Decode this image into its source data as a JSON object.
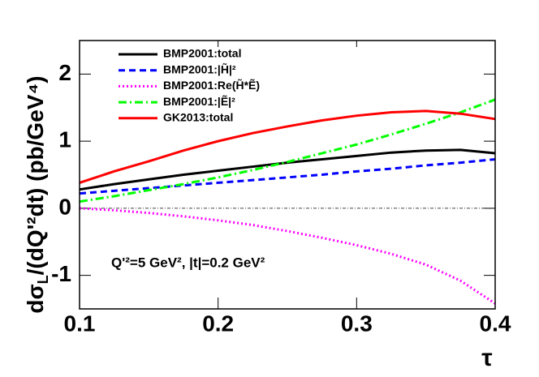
{
  "chart_data": {
    "type": "line",
    "y_label": [
      "dσ",
      "L",
      "/(dQ'²dt) (pb/GeV⁴)"
    ],
    "x_label": "τ",
    "annotation": "Q'²=5 GeV², |t|=0.2 GeV²",
    "x": [
      0.1,
      0.125,
      0.15,
      0.175,
      0.2,
      0.225,
      0.25,
      0.275,
      0.3,
      0.325,
      0.35,
      0.375,
      0.4
    ],
    "series": [
      {
        "name": "BMP2001:total",
        "color": "#000000",
        "dash": "solid",
        "values": [
          0.28,
          0.36,
          0.43,
          0.5,
          0.56,
          0.62,
          0.68,
          0.73,
          0.78,
          0.83,
          0.86,
          0.87,
          0.82
        ]
      },
      {
        "name": "BMP2001:|H̃|²",
        "color": "#0000ff",
        "dash": "dashed",
        "values": [
          0.22,
          0.26,
          0.3,
          0.34,
          0.38,
          0.42,
          0.46,
          0.5,
          0.55,
          0.59,
          0.64,
          0.68,
          0.73
        ]
      },
      {
        "name": "BMP2001:Re(H̃*Ẽ)",
        "color": "#ff00ff",
        "dash": "dotted",
        "values": [
          0,
          -0.03,
          -0.07,
          -0.12,
          -0.18,
          -0.25,
          -0.34,
          -0.44,
          -0.55,
          -0.68,
          -0.84,
          -1.08,
          -1.42
        ]
      },
      {
        "name": "BMP2001:|Ẽ|²",
        "color": "#00ff00",
        "dash": "dashdot",
        "values": [
          0.1,
          0.18,
          0.27,
          0.36,
          0.46,
          0.57,
          0.69,
          0.82,
          0.95,
          1.1,
          1.26,
          1.43,
          1.62
        ]
      },
      {
        "name": "GK2013:total",
        "color": "#ff0000",
        "dash": "solid",
        "values": [
          0.38,
          0.55,
          0.7,
          0.86,
          1.0,
          1.12,
          1.22,
          1.31,
          1.38,
          1.43,
          1.45,
          1.41,
          1.33
        ]
      }
    ],
    "xlim": [
      0.1,
      0.4
    ],
    "xticks": [
      0.1,
      0.2,
      0.3,
      0.4
    ],
    "ylim": [
      -1.5,
      2.5
    ],
    "yticks": [
      -1,
      0,
      1,
      2
    ],
    "legend": "upper left"
  }
}
